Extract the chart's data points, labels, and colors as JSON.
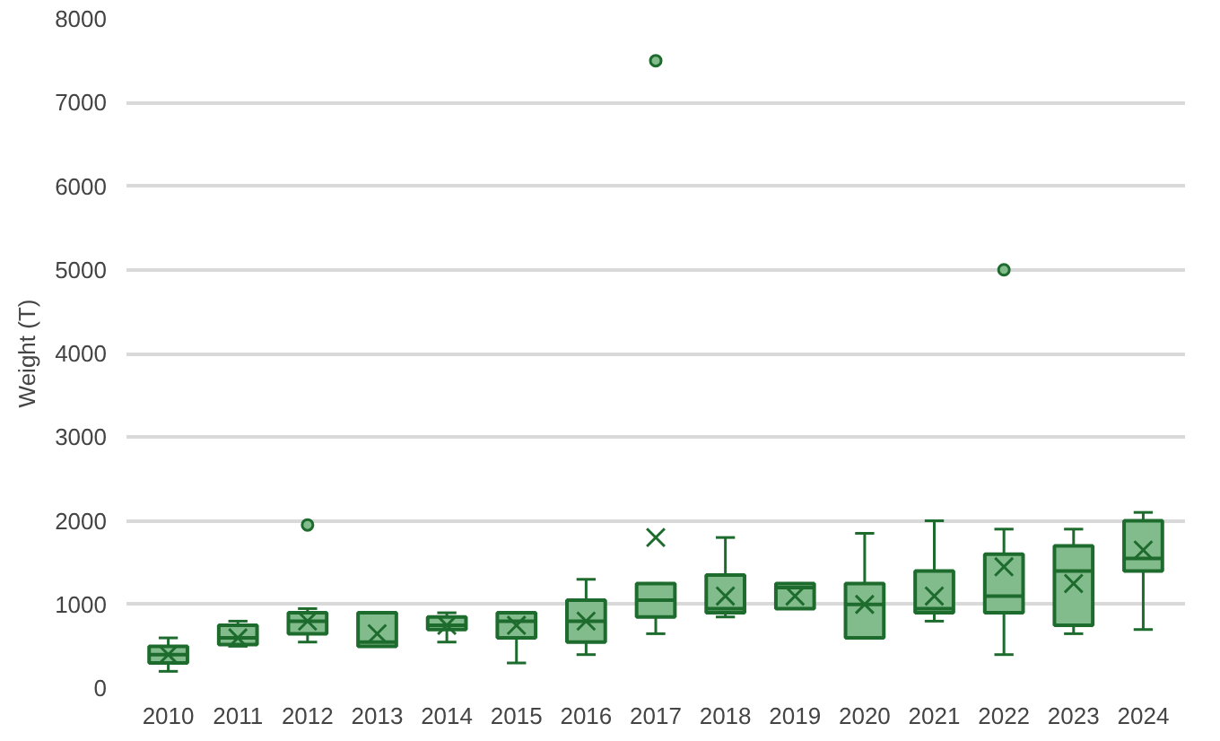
{
  "chart_data": {
    "type": "box",
    "ylabel": "Weight (T)",
    "color": "#1e6b2e",
    "ylim": [
      0,
      8000
    ],
    "yticks": [
      0,
      1000,
      2000,
      3000,
      4000,
      5000,
      6000,
      7000,
      8000
    ],
    "grid": "y",
    "categories": [
      "2010",
      "2011",
      "2012",
      "2013",
      "2014",
      "2015",
      "2016",
      "2017",
      "2018",
      "2019",
      "2020",
      "2021",
      "2022",
      "2023",
      "2024"
    ],
    "boxes": [
      {
        "low": 200,
        "q1": 300,
        "median": 400,
        "q3": 500,
        "high": 600,
        "mean": 400
      },
      {
        "low": 500,
        "q1": 520,
        "median": 600,
        "q3": 750,
        "high": 800,
        "mean": 600
      },
      {
        "low": 550,
        "q1": 650,
        "median": 800,
        "q3": 900,
        "high": 950,
        "mean": 800,
        "outliers": [
          1950
        ]
      },
      {
        "low": 500,
        "q1": 500,
        "median": 550,
        "q3": 900,
        "high": 900,
        "mean": 650
      },
      {
        "low": 550,
        "q1": 700,
        "median": 750,
        "q3": 850,
        "high": 900,
        "mean": 750
      },
      {
        "low": 300,
        "q1": 600,
        "median": 800,
        "q3": 900,
        "high": 900,
        "mean": 750
      },
      {
        "low": 400,
        "q1": 550,
        "median": 800,
        "q3": 1050,
        "high": 1300,
        "mean": 800
      },
      {
        "low": 650,
        "q1": 850,
        "median": 1050,
        "q3": 1250,
        "high": 1250,
        "mean": 1800,
        "outliers": [
          7500
        ]
      },
      {
        "low": 850,
        "q1": 900,
        "median": 950,
        "q3": 1350,
        "high": 1800,
        "mean": 1100
      },
      {
        "low": 950,
        "q1": 950,
        "median": 1200,
        "q3": 1250,
        "high": 1250,
        "mean": 1100
      },
      {
        "low": 600,
        "q1": 600,
        "median": 1000,
        "q3": 1250,
        "high": 1850,
        "mean": 1000
      },
      {
        "low": 800,
        "q1": 900,
        "median": 950,
        "q3": 1400,
        "high": 2000,
        "mean": 1100
      },
      {
        "low": 400,
        "q1": 900,
        "median": 1100,
        "q3": 1600,
        "high": 1900,
        "mean": 1450,
        "outliers": [
          5000
        ]
      },
      {
        "low": 650,
        "q1": 750,
        "median": 1400,
        "q3": 1700,
        "high": 1900,
        "mean": 1250
      },
      {
        "low": 700,
        "q1": 1400,
        "median": 1550,
        "q3": 2000,
        "high": 2100,
        "mean": 1650
      }
    ]
  }
}
